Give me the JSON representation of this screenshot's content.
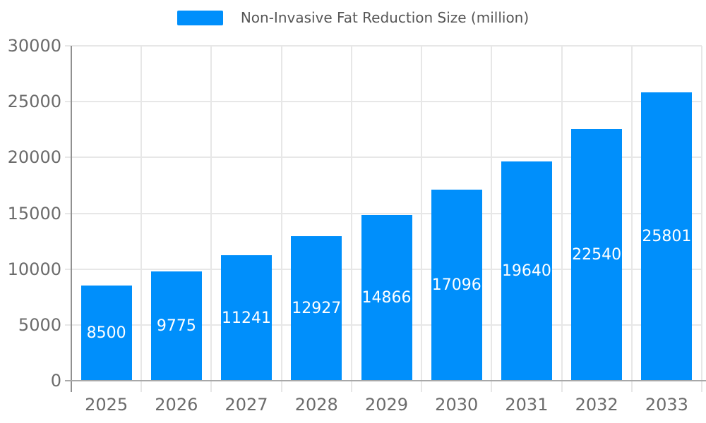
{
  "legend": {
    "label": "Non-Invasive Fat Reduction Size (million)",
    "swatch_color": "#008FFB"
  },
  "chart_data": {
    "type": "bar",
    "title": "Non-Invasive Fat Reduction Size (million)",
    "series_name": "Non-Invasive Fat Reduction Size (million)",
    "categories": [
      "2025",
      "2026",
      "2027",
      "2028",
      "2029",
      "2030",
      "2031",
      "2032",
      "2033"
    ],
    "values": [
      8500,
      9775,
      11241,
      12927,
      14866,
      17096,
      19640,
      22540,
      25801
    ],
    "xlabel": "",
    "ylabel": "",
    "ylim": [
      0,
      30000
    ],
    "yticks": [
      0,
      5000,
      10000,
      15000,
      20000,
      25000,
      30000
    ],
    "grid": true,
    "legend_position": "top",
    "bar_color": "#008FFB",
    "value_label_color": "#ffffff"
  },
  "colors": {
    "background": "#ffffff",
    "bar": "#008FFB",
    "grid": "#e7e7e7",
    "y_axis_line": "#909090",
    "x_axis_line": "#a8a8a8",
    "axis_text": "#6b6b6b",
    "legend_text": "#565656",
    "value_label": "#ffffff"
  }
}
